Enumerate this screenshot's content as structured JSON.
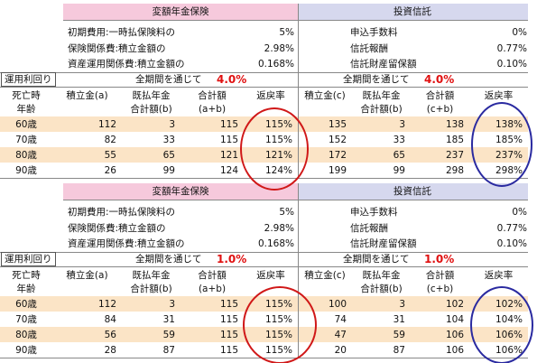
{
  "blocks": [
    {
      "insurance_header": "変額年金保険",
      "fund_header": "投資信託",
      "costs": [
        [
          "初期費用:一時払保険料の",
          "5%",
          "申込手数料",
          "0%"
        ],
        [
          "保険関係費:積立金額の",
          "2.98%",
          "信託報酬",
          "0.77%"
        ],
        [
          "資産運用関係費:積立金額の",
          "0.168%",
          "信託財産留保額",
          "0.10%"
        ]
      ],
      "yield_label": "運用利回り",
      "period_left": "全期間を通じて",
      "rate_left": "4.0%",
      "period_right": "全期間を通じて",
      "rate_right": "4.0%",
      "columns": [
        [
          "死亡時",
          "年齢"
        ],
        [
          "積立金(a)"
        ],
        [
          "既払年金",
          "合計額(b)"
        ],
        [
          "合計額",
          "(a+b)"
        ],
        [
          "返戻率"
        ],
        [
          "積立金(c)"
        ],
        [
          "既払年金",
          "合計額(b)"
        ],
        [
          "合計額",
          "(c+b)"
        ],
        [
          "返戻率"
        ]
      ],
      "rows": [
        [
          "60歳",
          "112",
          "3",
          "115",
          "115%",
          "135",
          "3",
          "138",
          "138%"
        ],
        [
          "70歳",
          "82",
          "33",
          "115",
          "115%",
          "152",
          "33",
          "185",
          "185%"
        ],
        [
          "80歳",
          "55",
          "65",
          "121",
          "121%",
          "172",
          "65",
          "237",
          "237%"
        ],
        [
          "90歳",
          "26",
          "99",
          "124",
          "124%",
          "199",
          "99",
          "298",
          "298%"
        ]
      ]
    },
    {
      "insurance_header": "変額年金保険",
      "fund_header": "投資信託",
      "costs": [
        [
          "初期費用:一時払保険料の",
          "5%",
          "申込手数料",
          "0%"
        ],
        [
          "保険関係費:積立金額の",
          "2.98%",
          "信託報酬",
          "0.77%"
        ],
        [
          "資産運用関係費:積立金額の",
          "0.168%",
          "信託財産留保額",
          "0.10%"
        ]
      ],
      "yield_label": "運用利回り",
      "period_left": "全期間を通じて",
      "rate_left": "1.0%",
      "period_right": "全期間を通じて",
      "rate_right": "1.0%",
      "columns": [
        [
          "死亡時",
          "年齢"
        ],
        [
          "積立金(a)"
        ],
        [
          "既払年金",
          "合計額(b)"
        ],
        [
          "合計額",
          "(a+b)"
        ],
        [
          "返戻率"
        ],
        [
          "積立金(c)"
        ],
        [
          "既払年金",
          "合計額(b)"
        ],
        [
          "合計額",
          "(c+b)"
        ],
        [
          "返戻率"
        ]
      ],
      "rows": [
        [
          "60歳",
          "112",
          "3",
          "115",
          "115%",
          "100",
          "3",
          "102",
          "102%"
        ],
        [
          "70歳",
          "84",
          "31",
          "115",
          "115%",
          "74",
          "31",
          "104",
          "104%"
        ],
        [
          "80歳",
          "56",
          "59",
          "115",
          "115%",
          "47",
          "59",
          "106",
          "106%"
        ],
        [
          "90歳",
          "28",
          "87",
          "115",
          "115%",
          "20",
          "87",
          "106",
          "106%"
        ]
      ]
    }
  ]
}
